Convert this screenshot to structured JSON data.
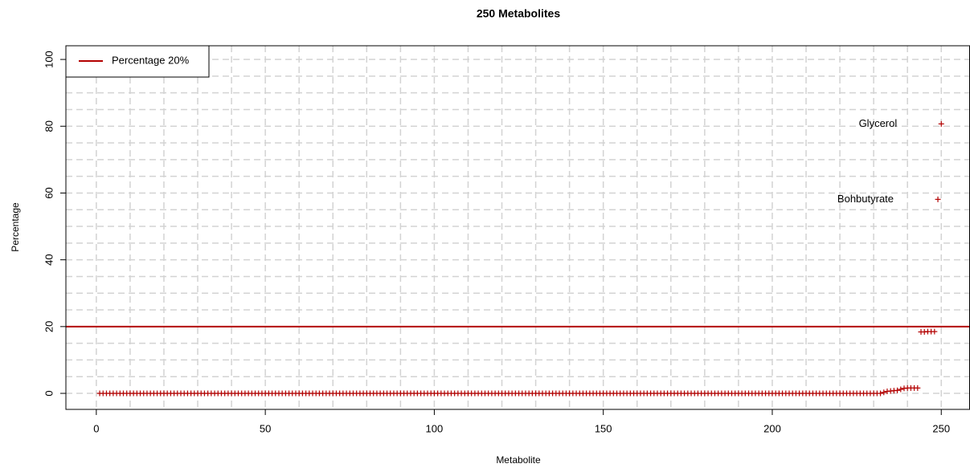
{
  "chart_data": {
    "type": "scatter",
    "title": "250 Metabolites",
    "x_label": "Metabolite",
    "y_label": "Percentage",
    "x": [
      1,
      2,
      3,
      4,
      5,
      6,
      7,
      8,
      9,
      10,
      11,
      12,
      13,
      14,
      15,
      16,
      17,
      18,
      19,
      20,
      21,
      22,
      23,
      24,
      25,
      26,
      27,
      28,
      29,
      30,
      31,
      32,
      33,
      34,
      35,
      36,
      37,
      38,
      39,
      40,
      41,
      42,
      43,
      44,
      45,
      46,
      47,
      48,
      49,
      50,
      51,
      52,
      53,
      54,
      55,
      56,
      57,
      58,
      59,
      60,
      61,
      62,
      63,
      64,
      65,
      66,
      67,
      68,
      69,
      70,
      71,
      72,
      73,
      74,
      75,
      76,
      77,
      78,
      79,
      80,
      81,
      82,
      83,
      84,
      85,
      86,
      87,
      88,
      89,
      90,
      91,
      92,
      93,
      94,
      95,
      96,
      97,
      98,
      99,
      100,
      101,
      102,
      103,
      104,
      105,
      106,
      107,
      108,
      109,
      110,
      111,
      112,
      113,
      114,
      115,
      116,
      117,
      118,
      119,
      120,
      121,
      122,
      123,
      124,
      125,
      126,
      127,
      128,
      129,
      130,
      131,
      132,
      133,
      134,
      135,
      136,
      137,
      138,
      139,
      140,
      141,
      142,
      143,
      144,
      145,
      146,
      147,
      148,
      149,
      150,
      151,
      152,
      153,
      154,
      155,
      156,
      157,
      158,
      159,
      160,
      161,
      162,
      163,
      164,
      165,
      166,
      167,
      168,
      169,
      170,
      171,
      172,
      173,
      174,
      175,
      176,
      177,
      178,
      179,
      180,
      181,
      182,
      183,
      184,
      185,
      186,
      187,
      188,
      189,
      190,
      191,
      192,
      193,
      194,
      195,
      196,
      197,
      198,
      199,
      200,
      201,
      202,
      203,
      204,
      205,
      206,
      207,
      208,
      209,
      210,
      211,
      212,
      213,
      214,
      215,
      216,
      217,
      218,
      219,
      220,
      221,
      222,
      223,
      224,
      225,
      226,
      227,
      228,
      229,
      230,
      231,
      232,
      233,
      234,
      235,
      236,
      237,
      238,
      239,
      240,
      241,
      242,
      243,
      244,
      245,
      246,
      247,
      248,
      249,
      250
    ],
    "values": [
      0,
      0,
      0,
      0,
      0,
      0,
      0,
      0,
      0,
      0,
      0,
      0,
      0,
      0,
      0,
      0,
      0,
      0,
      0,
      0,
      0,
      0,
      0,
      0,
      0,
      0,
      0,
      0,
      0,
      0,
      0,
      0,
      0,
      0,
      0,
      0,
      0,
      0,
      0,
      0,
      0,
      0,
      0,
      0,
      0,
      0,
      0,
      0,
      0,
      0,
      0,
      0,
      0,
      0,
      0,
      0,
      0,
      0,
      0,
      0,
      0,
      0,
      0,
      0,
      0,
      0,
      0,
      0,
      0,
      0,
      0,
      0,
      0,
      0,
      0,
      0,
      0,
      0,
      0,
      0,
      0,
      0,
      0,
      0,
      0,
      0,
      0,
      0,
      0,
      0,
      0,
      0,
      0,
      0,
      0,
      0,
      0,
      0,
      0,
      0,
      0,
      0,
      0,
      0,
      0,
      0,
      0,
      0,
      0,
      0,
      0,
      0,
      0,
      0,
      0,
      0,
      0,
      0,
      0,
      0,
      0,
      0,
      0,
      0,
      0,
      0,
      0,
      0,
      0,
      0,
      0,
      0,
      0,
      0,
      0,
      0,
      0,
      0,
      0,
      0,
      0,
      0,
      0,
      0,
      0,
      0,
      0,
      0,
      0,
      0,
      0,
      0,
      0,
      0,
      0,
      0,
      0,
      0,
      0,
      0,
      0,
      0,
      0,
      0,
      0,
      0,
      0,
      0,
      0,
      0,
      0,
      0,
      0,
      0,
      0,
      0,
      0,
      0,
      0,
      0,
      0,
      0,
      0,
      0,
      0,
      0,
      0,
      0,
      0,
      0,
      0,
      0,
      0,
      0,
      0,
      0,
      0,
      0,
      0,
      0,
      0,
      0,
      0,
      0,
      0,
      0,
      0,
      0,
      0,
      0,
      0,
      0,
      0,
      0,
      0,
      0,
      0,
      0,
      0,
      0,
      0,
      0,
      0,
      0,
      0,
      0,
      0,
      0,
      0,
      0,
      0,
      0,
      0.3,
      0.6,
      0.7,
      0.8,
      0.9,
      1.2,
      1.5,
      1.6,
      1.6,
      1.6,
      1.6,
      18.4,
      18.4,
      18.5,
      18.5,
      18.5,
      58.1,
      80.7
    ],
    "labels": [
      null,
      null,
      null,
      null,
      null,
      null,
      null,
      null,
      null,
      null,
      null,
      null,
      null,
      null,
      null,
      null,
      null,
      null,
      null,
      null,
      null,
      null,
      null,
      null,
      null,
      null,
      null,
      null,
      null,
      null,
      null,
      null,
      null,
      null,
      null,
      null,
      null,
      null,
      null,
      null,
      null,
      null,
      null,
      null,
      null,
      null,
      null,
      null,
      null,
      null,
      null,
      null,
      null,
      null,
      null,
      null,
      null,
      null,
      null,
      null,
      null,
      null,
      null,
      null,
      null,
      null,
      null,
      null,
      null,
      null,
      null,
      null,
      null,
      null,
      null,
      null,
      null,
      null,
      null,
      null,
      null,
      null,
      null,
      null,
      null,
      null,
      null,
      null,
      null,
      null,
      null,
      null,
      null,
      null,
      null,
      null,
      null,
      null,
      null,
      null,
      null,
      null,
      null,
      null,
      null,
      null,
      null,
      null,
      null,
      null,
      null,
      null,
      null,
      null,
      null,
      null,
      null,
      null,
      null,
      null,
      null,
      null,
      null,
      null,
      null,
      null,
      null,
      null,
      null,
      null,
      null,
      null,
      null,
      null,
      null,
      null,
      null,
      null,
      null,
      null,
      null,
      null,
      null,
      null,
      null,
      null,
      null,
      null,
      null,
      null,
      null,
      null,
      null,
      null,
      null,
      null,
      null,
      null,
      null,
      null,
      null,
      null,
      null,
      null,
      null,
      null,
      null,
      null,
      null,
      null,
      null,
      null,
      null,
      null,
      null,
      null,
      null,
      null,
      null,
      null,
      null,
      null,
      null,
      null,
      null,
      null,
      null,
      null,
      null,
      null,
      null,
      null,
      null,
      null,
      null,
      null,
      null,
      null,
      null,
      null,
      null,
      null,
      null,
      null,
      null,
      null,
      null,
      null,
      null,
      null,
      null,
      null,
      null,
      null,
      null,
      null,
      null,
      null,
      null,
      null,
      null,
      null,
      null,
      null,
      null,
      null,
      null,
      null,
      null,
      null,
      null,
      null,
      null,
      null,
      null,
      null,
      null,
      null,
      null,
      null,
      null,
      null,
      null,
      null,
      null,
      null,
      null,
      null,
      "Bohbutyrate",
      "Glycerol"
    ],
    "color": "#b30000",
    "hline": {
      "value": 20,
      "name": "Percentage 20%",
      "color": "#b30000"
    },
    "xlim": [
      -9,
      258.5
    ],
    "ylim": [
      -4.8,
      104.1
    ],
    "xticks": [
      0,
      50,
      100,
      150,
      200,
      250
    ],
    "yticks": [
      0,
      20,
      40,
      60,
      80,
      100
    ],
    "x_grid_step": 10,
    "y_grid_step": 5,
    "grid": true,
    "legend": "top-left"
  }
}
